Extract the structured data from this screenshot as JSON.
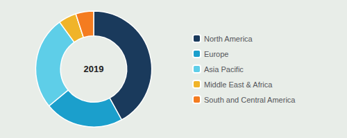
{
  "chart_data": {
    "type": "pie",
    "categories": [
      "North America",
      "Europe",
      "Asia Pacific",
      "Middle East & Africa",
      "South and Central America"
    ],
    "values": [
      42,
      22,
      26,
      5,
      5
    ],
    "colors": [
      "#1a3a5c",
      "#1b9fcc",
      "#5ecee8",
      "#f0b429",
      "#f47c20"
    ],
    "annotation": "2019",
    "legend": "right"
  }
}
